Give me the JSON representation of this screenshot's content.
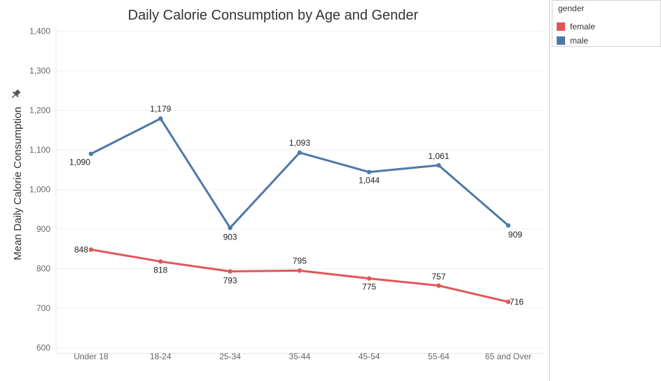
{
  "chart_data": {
    "type": "line",
    "title": "Daily Calorie Consumption by Age and Gender",
    "xlabel": "",
    "ylabel": "Mean Daily Calorie Consumption",
    "categories": [
      "Under 18",
      "18-24",
      "25-34",
      "35-44",
      "45-54",
      "55-64",
      "65 and Over"
    ],
    "ylim": [
      600,
      1400
    ],
    "yticks": [
      600,
      700,
      800,
      900,
      1000,
      1100,
      1200,
      1300,
      1400
    ],
    "ytick_labels": [
      "600",
      "700",
      "800",
      "900",
      "1,000",
      "1,100",
      "1,200",
      "1,300",
      "1,400"
    ],
    "grid": true,
    "legend_position": "top-right",
    "series": [
      {
        "name": "female",
        "color": "#e15759",
        "values": [
          848,
          818,
          793,
          795,
          775,
          757,
          716
        ],
        "labels": [
          "848",
          "818",
          "793",
          "795",
          "775",
          "757",
          "716"
        ]
      },
      {
        "name": "male",
        "color": "#4e79a7",
        "values": [
          1090,
          1179,
          903,
          1093,
          1044,
          1061,
          909
        ],
        "labels": [
          "1,090",
          "1,179",
          "903",
          "1,093",
          "1,044",
          "1,061",
          "909"
        ]
      }
    ]
  },
  "legend": {
    "title": "gender",
    "items": [
      {
        "label": "female",
        "color": "#e15759"
      },
      {
        "label": "male",
        "color": "#4e79a7"
      }
    ]
  },
  "icons": {
    "pin": "pin-icon"
  }
}
